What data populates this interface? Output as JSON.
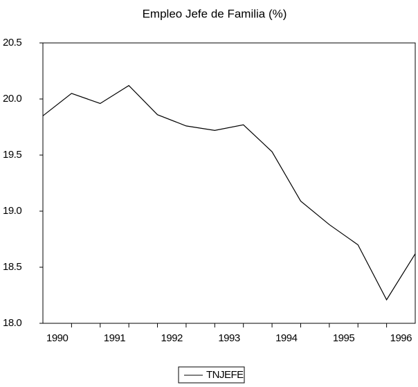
{
  "chart_data": {
    "type": "line",
    "title": "Empleo Jefe de Familia (%)",
    "categories": [
      "1990",
      null,
      "1991",
      null,
      "1992",
      null,
      "1993",
      null,
      "1994",
      null,
      "1995",
      null,
      "1996",
      null
    ],
    "series": [
      {
        "name": "TNJEFE",
        "color": "#000000",
        "values": [
          19.85,
          20.05,
          19.96,
          20.12,
          19.86,
          19.76,
          19.72,
          19.77,
          19.53,
          19.09,
          18.88,
          18.7,
          18.21,
          18.62
        ]
      }
    ],
    "ylim": [
      18.0,
      20.5
    ],
    "yticks": [
      {
        "value": 18,
        "label": "18.0"
      },
      18.5,
      {
        "value": 19,
        "label": "19.0"
      },
      19.5,
      {
        "value": 20,
        "label": "20.0"
      },
      20.5
    ],
    "grid": false,
    "legend": "bottom"
  }
}
